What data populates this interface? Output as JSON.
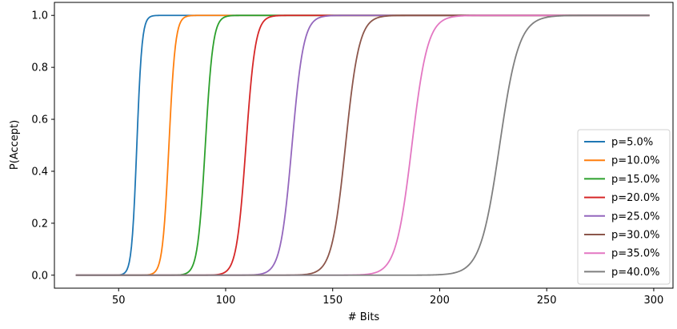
{
  "chart_data": {
    "type": "line",
    "title": "",
    "xlabel": "# Bits",
    "ylabel": "P(Accept)",
    "xlim": [
      20,
      309
    ],
    "ylim": [
      -0.05,
      1.05
    ],
    "xticks": [
      50,
      100,
      150,
      200,
      250,
      300
    ],
    "yticks": [
      0.0,
      0.2,
      0.4,
      0.6,
      0.8,
      1.0
    ],
    "xtick_labels": [
      "50",
      "100",
      "150",
      "200",
      "250",
      "300"
    ],
    "ytick_labels": [
      "0.0",
      "0.2",
      "0.4",
      "0.6",
      "0.8",
      "1.0"
    ],
    "x_range": [
      30,
      298
    ],
    "grid": false,
    "legend_position": "lower right",
    "series": [
      {
        "name": "p=5.0%",
        "color": "#1f77b4",
        "midpoint": 58.5,
        "scale": 1.2
      },
      {
        "name": "p=10.0%",
        "color": "#ff7f0e",
        "midpoint": 73.5,
        "scale": 1.5
      },
      {
        "name": "p=15.0%",
        "color": "#2ca02c",
        "midpoint": 90.5,
        "scale": 1.8
      },
      {
        "name": "p=20.0%",
        "color": "#d62728",
        "midpoint": 109.5,
        "scale": 2.2
      },
      {
        "name": "p=25.0%",
        "color": "#9467bd",
        "midpoint": 131.0,
        "scale": 2.7
      },
      {
        "name": "p=30.0%",
        "color": "#8c564b",
        "midpoint": 156.0,
        "scale": 3.2
      },
      {
        "name": "p=35.0%",
        "color": "#e377c2",
        "midpoint": 187.0,
        "scale": 3.7
      },
      {
        "name": "p=40.0%",
        "color": "#7f7f7f",
        "midpoint": 228.0,
        "scale": 4.5
      }
    ]
  }
}
